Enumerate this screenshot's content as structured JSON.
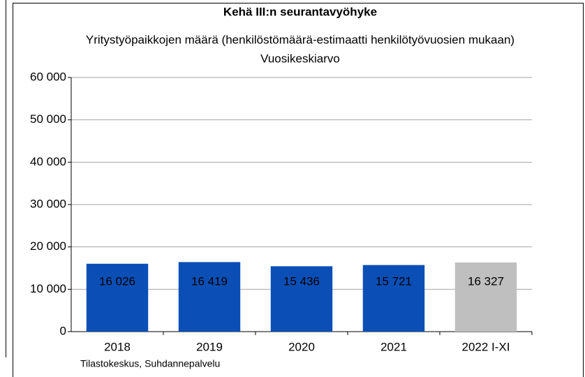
{
  "chart_data": {
    "type": "bar",
    "title": "Kehä III:n seurantavyöhyke",
    "subtitle": "Yritystyöpaikkojen määrä (henkilöstömäärä-estimaatti henkilötyövuosien mukaan)",
    "subtitle2": "Vuosikeskiarvo",
    "source": "Tilastokeskus, Suhdannepalvelu",
    "categories": [
      "2018",
      "2019",
      "2020",
      "2021",
      "2022  I-XI"
    ],
    "values": [
      16026,
      16419,
      15436,
      15721,
      16327
    ],
    "value_labels": [
      "16 026",
      "16 419",
      "15 436",
      "15 721",
      "16 327"
    ],
    "colors": [
      "#0b4fb6",
      "#0b4fb6",
      "#0b4fb6",
      "#0b4fb6",
      "#bfbfbf"
    ],
    "value_label_colors": [
      "#ffffff",
      "#ffffff",
      "#ffffff",
      "#ffffff",
      "#000000"
    ],
    "ylim": [
      0,
      60000
    ],
    "yticks": [
      {
        "value": 0,
        "label": "0"
      },
      {
        "value": 10000,
        "label": "10 000"
      },
      {
        "value": 20000,
        "label": "20 000"
      },
      {
        "value": 30000,
        "label": "30 000"
      },
      {
        "value": 40000,
        "label": "40 000"
      },
      {
        "value": 50000,
        "label": "50 000"
      },
      {
        "value": 60000,
        "label": "60 000"
      }
    ],
    "grid": true
  }
}
